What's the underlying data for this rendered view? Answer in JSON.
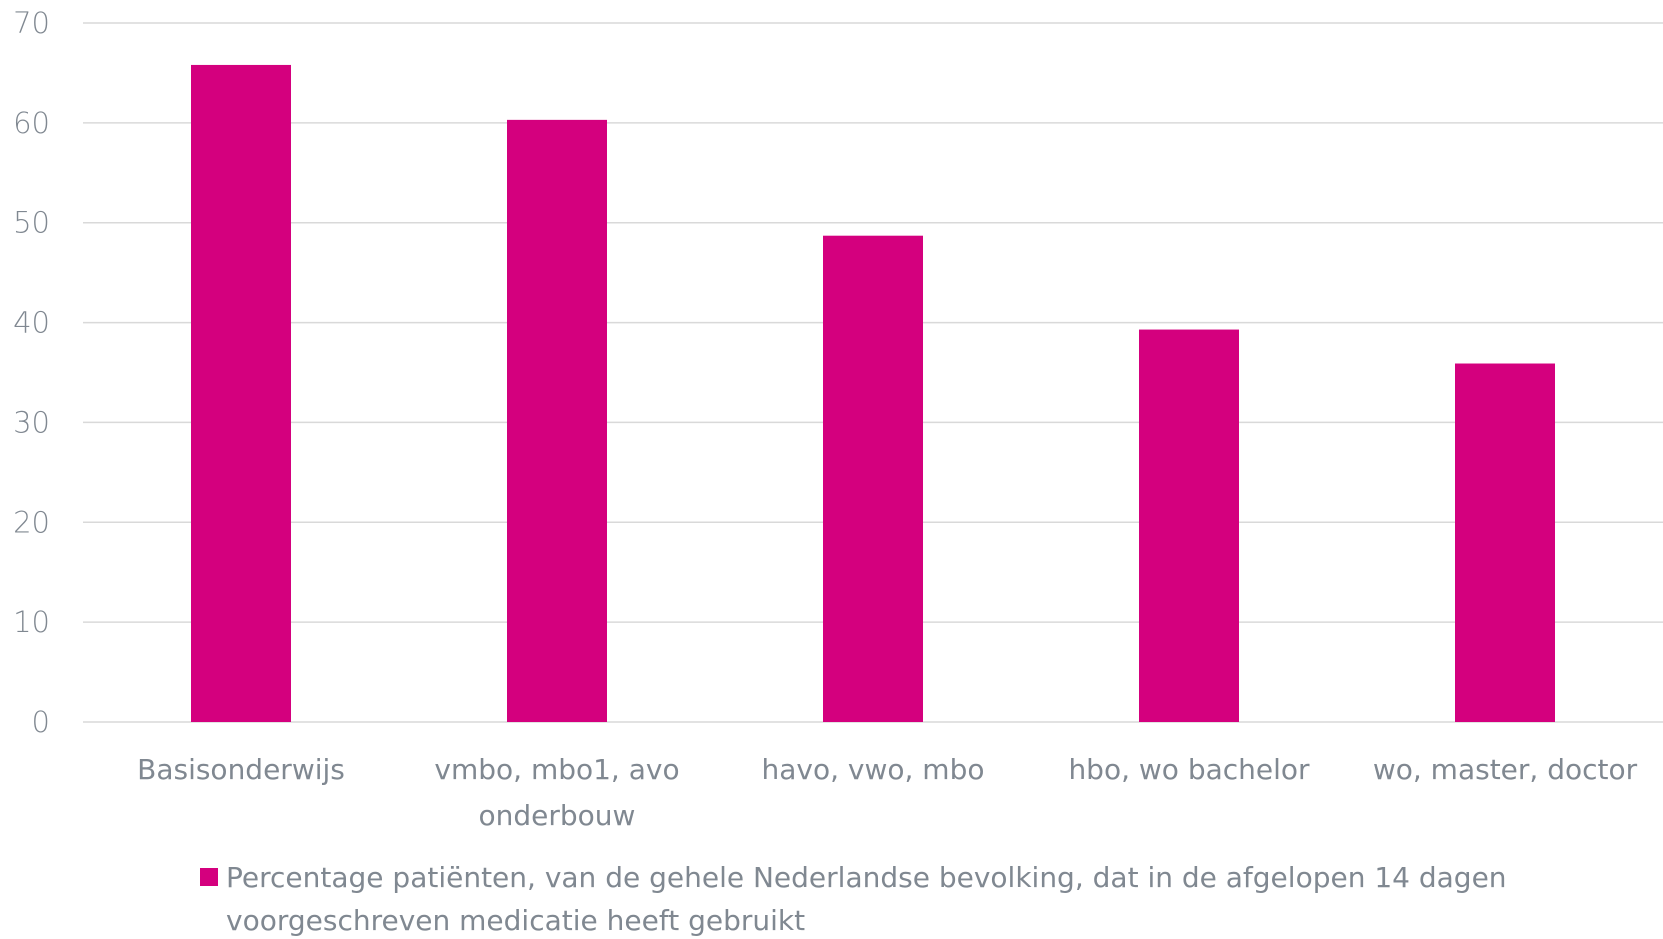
{
  "chart_data": {
    "type": "bar",
    "categories": [
      [
        "Basisonderwijs"
      ],
      [
        "vmbo, mbo1, avo",
        "onderbouw"
      ],
      [
        "havo, vwo, mbo"
      ],
      [
        "hbo, wo bachelor"
      ],
      [
        "wo, master, doctor"
      ]
    ],
    "series": [
      {
        "name": "Percentage patiënten, van de gehele Nederlandse bevolking, dat in de afgelopen 14 dagen voorgeschreven medicatie heeft gebruikt",
        "values": [
          65.8,
          60.3,
          48.7,
          39.3,
          35.9
        ]
      }
    ],
    "legend_lines": [
      "Percentage patiënten, van de gehele Nederlandse bevolking, dat in de afgelopen 14 dagen",
      "voorgeschreven medicatie heeft gebruikt"
    ],
    "yticks": [
      "0",
      "10",
      "20",
      "30",
      "40",
      "50",
      "60",
      "70"
    ],
    "ylim": [
      0,
      70
    ],
    "grid": true,
    "legend_position": "bottom",
    "title": "",
    "xlabel": "",
    "ylabel": "",
    "colors": {
      "bar": "#d4007e",
      "grid": "#d9d9d9",
      "text": "#808891"
    }
  }
}
